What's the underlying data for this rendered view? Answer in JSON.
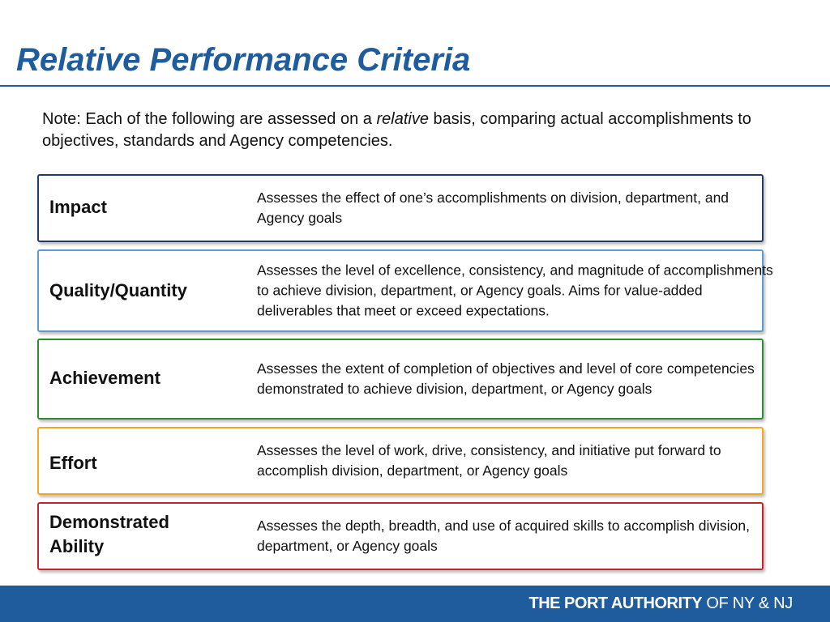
{
  "slide": {
    "title": "Relative Performance Criteria",
    "note": {
      "before": "Note: Each of the following are assessed on a ",
      "emphasis": "relative",
      "after": " basis, comparing actual accomplishments to objectives, standards and Agency competencies."
    },
    "criteria": [
      {
        "name": "Impact",
        "description": "Assesses the effect of one’s accomplishments on division, department, and Agency goals",
        "border_color": "#1f3c6b"
      },
      {
        "name": "Quality/Quantity",
        "description": "Assesses the level of excellence, consistency, and magnitude of accomplishments to achieve division, department, or Agency goals. Aims for value-added deliverables that meet or exceed expectations.",
        "border_color": "#5b9bd5"
      },
      {
        "name": "Achievement",
        "description": "Assesses the extent of completion of objectives and level of core competencies demonstrated to achieve division, department, or Agency goals",
        "border_color": "#2e8b2e"
      },
      {
        "name": "Effort",
        "description": "Assesses the level of work, drive, consistency, and initiative put forward to accomplish division, department, or Agency goals",
        "border_color": "#f5a623"
      },
      {
        "name": "Demonstrated Ability",
        "description": "Assesses the depth, breadth, and use of acquired skills to accomplish division, department, or Agency goals",
        "border_color": "#c0272d"
      }
    ]
  },
  "footer": {
    "logo_bold": "THE PORT AUTHORITY",
    "logo_light": " OF NY & NJ",
    "background_color": "#1f5c9e"
  },
  "colors": {
    "title": "#1f5c9e"
  }
}
